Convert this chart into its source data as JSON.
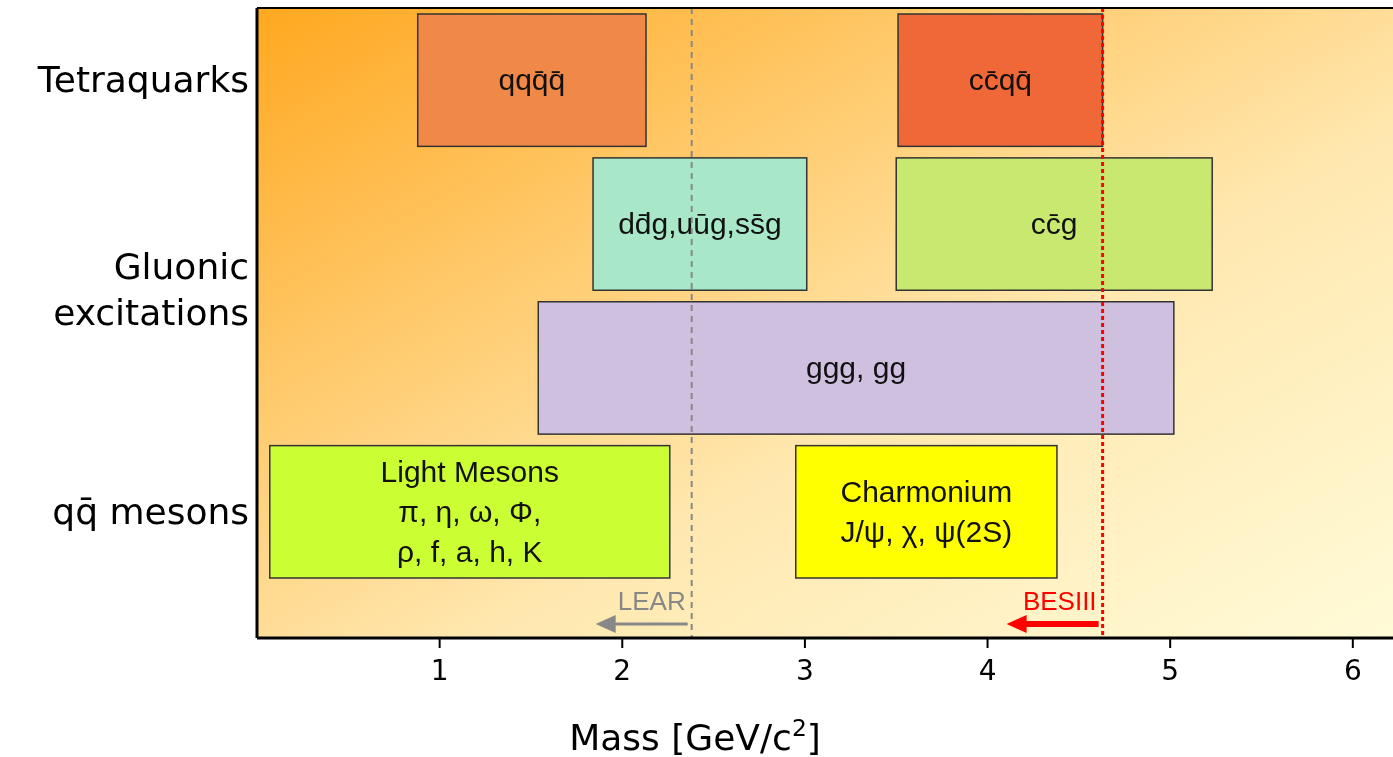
{
  "chart_data": {
    "type": "bar",
    "orientation": "horizontal",
    "xlabel": "Mass [GeV/c$^{2}$]",
    "categories": [
      "Tetraquarks",
      null,
      "Gluonic excitations",
      "qq̄ mesons"
    ],
    "xlim": [
      0,
      6.22
    ],
    "xticks": [
      1,
      2,
      3,
      4,
      5,
      6
    ],
    "series": [
      {
        "base": [
          0.88,
          1.84,
          1.54,
          0.07
        ],
        "values": [
          1.25,
          1.17,
          3.48,
          2.19
        ],
        "colors": [
          "#f08848",
          "#a8e8c8",
          "#d0c0e0",
          "#ccff33"
        ],
        "value_labels": [
          "qqq̄q̄",
          "dd̄g,uūg,ss̄g",
          "ggg, gg",
          "Light Mesons\nπ, η, ω, Φ,\nρ, f, a, h, K"
        ]
      },
      {
        "base": [
          3.51,
          3.5,
          null,
          2.95
        ],
        "values": [
          1.12,
          1.73,
          null,
          1.43
        ],
        "colors": [
          "#f06838",
          "#c8e870",
          null,
          "#ffff00"
        ],
        "value_labels": [
          "cc̄qq̄",
          "cc̄g",
          null,
          "Charmonium\nJ/ψ, χ, ψ(2S)"
        ]
      }
    ],
    "ref_lines": [
      {
        "axis": "x",
        "value": 2.38,
        "label": "LEAR",
        "color": "#888888",
        "line_style": "dashed"
      },
      {
        "axis": "x",
        "value": 4.63,
        "label": "BESIII",
        "color": "#ff0000",
        "line_style": "dotted"
      }
    ]
  }
}
